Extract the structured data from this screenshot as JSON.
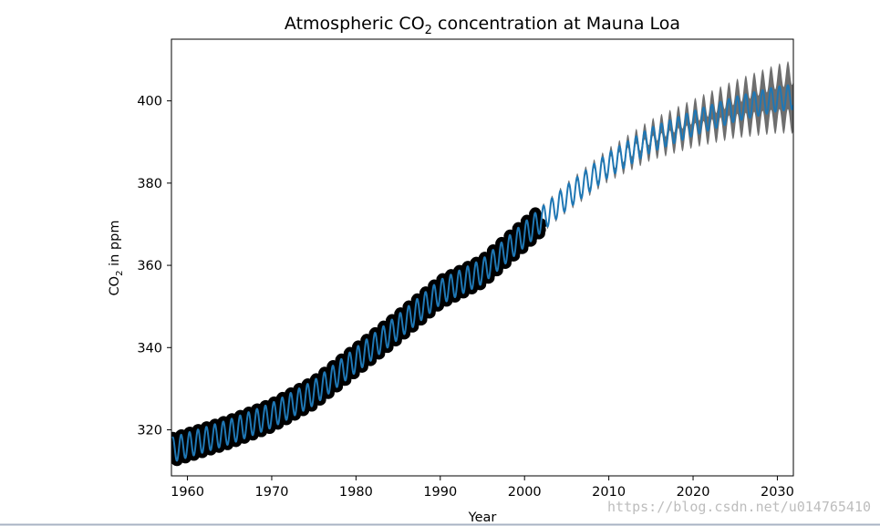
{
  "chart_data": {
    "type": "line",
    "title": "Atmospheric CO₂ concentration at Mauna Loa",
    "title_parts": {
      "pre": "Atmospheric CO",
      "sub": "2",
      "post": " concentration at Mauna Loa"
    },
    "xlabel": "Year",
    "ylabel": "CO₂ in ppm",
    "ylabel_parts": {
      "pre": "CO",
      "sub": "2",
      "post": " in ppm"
    },
    "xlim": [
      1958.1,
      2031.9
    ],
    "ylim": [
      308.8,
      415
    ],
    "xticks": [
      1960,
      1970,
      1980,
      1990,
      2000,
      2010,
      2020,
      2030
    ],
    "yticks": [
      320,
      340,
      360,
      380,
      400
    ],
    "grid": false,
    "legend": "none",
    "observed_range": [
      1958.2,
      2002.0
    ],
    "prediction_range": [
      1958.2,
      2031.9
    ],
    "seasonal_amplitude": 3.0,
    "trend": {
      "x": [
        1958,
        1965,
        1970,
        1975,
        1980,
        1985,
        1990,
        1995,
        2000,
        2005,
        2010,
        2015,
        2020,
        2025,
        2030,
        2032
      ],
      "y": [
        315.0,
        319.5,
        323.5,
        329.0,
        337.0,
        345.0,
        353.5,
        358.5,
        367.5,
        376.5,
        384.5,
        390.5,
        394.5,
        398.0,
        400.5,
        401.0
      ]
    },
    "uncertainty": {
      "x": [
        2002,
        2010,
        2020,
        2025,
        2030,
        2032
      ],
      "half_width": [
        0.5,
        1.2,
        3.0,
        4.2,
        5.5,
        6.0
      ]
    },
    "series": [
      {
        "name": "",
        "role": "observations",
        "color": "#000000"
      },
      {
        "name": "",
        "role": "prediction",
        "color": "#1f77b4"
      },
      {
        "name": "",
        "role": "uncertainty-band",
        "color": "#555555"
      }
    ],
    "watermark": "https://blog.csdn.net/u014765410"
  }
}
